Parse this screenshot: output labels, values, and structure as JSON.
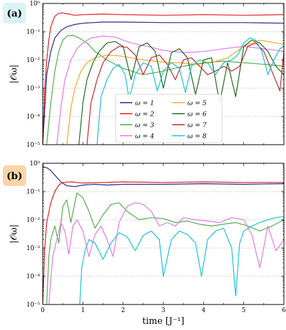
{
  "chart_data": [
    {
      "type": "line",
      "panel_label": "(a)",
      "ylabel": "|𝒪ω|",
      "xlabel": "",
      "yscale": "log",
      "ylim": [
        1e-05,
        1
      ],
      "xlim": [
        0,
        6
      ],
      "legend_position": "bottom-center",
      "yticks": [
        "10⁻⁵",
        "10⁻⁴",
        "10⁻³",
        "10⁻²",
        "10⁻¹",
        "10⁰"
      ],
      "series": [
        {
          "name": "ω = 1",
          "color": "#1f2a8a",
          "x": [
            0,
            0.1,
            0.2,
            0.3,
            0.45,
            0.6,
            0.8,
            1.0,
            1.5,
            2,
            3,
            4,
            5,
            6
          ],
          "y": [
            1e-05,
            0.003,
            0.02,
            0.06,
            0.11,
            0.15,
            0.18,
            0.2,
            0.22,
            0.22,
            0.21,
            0.21,
            0.21,
            0.2
          ]
        },
        {
          "name": "ω = 2",
          "color": "#e31a1c",
          "x": [
            0,
            0.05,
            0.1,
            0.15,
            0.2,
            0.3,
            0.4,
            0.5,
            0.65,
            0.8,
            1.0,
            1.5,
            2,
            3,
            4,
            5,
            6
          ],
          "y": [
            1e-05,
            0.001,
            0.01,
            0.05,
            0.15,
            0.35,
            0.45,
            0.46,
            0.42,
            0.38,
            0.4,
            0.42,
            0.4,
            0.38,
            0.4,
            0.38,
            0.4
          ]
        },
        {
          "name": "ω = 3",
          "color": "#4daf4a",
          "x": [
            0.1,
            0.2,
            0.3,
            0.4,
            0.5,
            0.6,
            0.75,
            0.9,
            1.1,
            1.3,
            1.6,
            2.0,
            2.5,
            3.0,
            3.5,
            4.0,
            4.5,
            5.0,
            5.5,
            6.0
          ],
          "y": [
            1e-05,
            0.0003,
            0.004,
            0.02,
            0.05,
            0.07,
            0.075,
            0.06,
            0.04,
            0.02,
            0.01,
            0.005,
            0.003,
            0.004,
            0.006,
            0.008,
            0.009,
            0.008,
            0.007,
            0.006
          ]
        },
        {
          "name": "ω = 4",
          "color": "#e377e3",
          "x": [
            0.35,
            0.45,
            0.55,
            0.7,
            0.85,
            1.0,
            1.2,
            1.5,
            1.8,
            2.0,
            2.2,
            2.6,
            3.0,
            3.5,
            4.0,
            4.5,
            5.0,
            5.5,
            6.0
          ],
          "y": [
            1e-05,
            0.0002,
            0.002,
            0.01,
            0.025,
            0.04,
            0.06,
            0.07,
            0.065,
            0.05,
            0.04,
            0.03,
            0.022,
            0.018,
            0.02,
            0.025,
            0.03,
            0.025,
            0.02
          ]
        },
        {
          "name": "ω = 5",
          "color": "#f5a623",
          "x": [
            0.6,
            0.7,
            0.8,
            0.95,
            1.1,
            1.3,
            1.6,
            1.9,
            2.2,
            2.5,
            2.8,
            3.1,
            3.4,
            3.8,
            4.2,
            4.6,
            5.0,
            5.4,
            5.8,
            6.0
          ],
          "y": [
            1e-05,
            0.0002,
            0.001,
            0.004,
            0.008,
            0.012,
            0.015,
            0.014,
            0.012,
            0.01,
            0.009,
            0.008,
            0.008,
            0.007,
            0.008,
            0.012,
            0.03,
            0.05,
            0.04,
            0.035
          ]
        },
        {
          "name": "ω = 6",
          "color": "#1a6b1a",
          "x": [
            0.9,
            1.0,
            1.1,
            1.25,
            1.4,
            1.6,
            1.8,
            2.0,
            2.2,
            2.4,
            2.6,
            2.8,
            3.0,
            3.2,
            3.4,
            3.6,
            3.8,
            4.0,
            4.2,
            4.4,
            4.6,
            4.8,
            5.0,
            5.2,
            5.4,
            5.6,
            5.8,
            6.0
          ],
          "y": [
            1e-05,
            0.0003,
            0.002,
            0.008,
            0.02,
            0.04,
            0.045,
            0.03,
            0.002,
            0.03,
            0.04,
            0.02,
            0.001,
            0.018,
            0.025,
            0.012,
            0.0006,
            0.01,
            0.012,
            0.0003,
            0.008,
            0.0005,
            0.03,
            0.05,
            0.04,
            0.02,
            0.006,
            0.003
          ]
        },
        {
          "name": "ω = 7",
          "color": "#c1272d",
          "x": [
            1.1,
            1.2,
            1.35,
            1.5,
            1.7,
            1.9,
            2.1,
            2.3,
            2.5,
            2.7,
            2.9,
            3.1,
            3.3,
            3.5,
            3.7,
            3.9,
            4.1,
            4.3,
            4.5,
            4.7,
            4.9,
            5.1,
            5.3,
            5.5,
            5.7,
            5.9,
            6.0
          ],
          "y": [
            1e-05,
            0.0003,
            0.002,
            0.008,
            0.02,
            0.03,
            0.028,
            0.015,
            0.003,
            0.012,
            0.015,
            0.007,
            0.002,
            0.01,
            0.012,
            0.006,
            0.003,
            0.004,
            0.006,
            0.004,
            0.006,
            0.03,
            0.04,
            0.02,
            0.004,
            0.0008,
            0.02
          ]
        },
        {
          "name": "ω = 8",
          "color": "#17c3d6",
          "x": [
            1.35,
            1.45,
            1.6,
            1.75,
            1.9,
            2.05,
            2.15,
            2.3,
            2.5,
            2.7,
            2.85,
            3.0,
            3.2,
            3.4,
            3.55,
            3.7,
            3.9,
            4.1,
            4.3,
            4.5,
            4.7,
            4.85,
            5.0,
            5.15,
            5.3,
            5.45,
            5.6,
            5.75,
            5.9,
            6.0
          ],
          "y": [
            1e-05,
            0.0005,
            0.002,
            0.005,
            0.007,
            0.003,
            0.0004,
            0.003,
            0.008,
            0.006,
            0.0008,
            0.004,
            0.008,
            0.005,
            0.0007,
            0.006,
            0.01,
            0.008,
            0.003,
            0.008,
            0.01,
            0.015,
            0.04,
            0.06,
            0.05,
            0.02,
            0.003,
            0.01,
            0.025,
            0.03
          ]
        }
      ]
    },
    {
      "type": "line",
      "panel_label": "(b)",
      "ylabel": "|𝒪ω|",
      "xlabel": "time [J⁻¹]",
      "yscale": "log",
      "ylim": [
        1e-05,
        1
      ],
      "xlim": [
        0,
        6
      ],
      "xticks": [
        "0",
        "1",
        "2",
        "3",
        "4",
        "5",
        "6"
      ],
      "yticks": [
        "10⁻⁵",
        "10⁻⁴",
        "10⁻³",
        "10⁻²",
        "10⁻¹",
        "10⁰"
      ],
      "series": [
        {
          "name": "ω = 1",
          "color": "#1f2a8a",
          "x": [
            0,
            0.1,
            0.2,
            0.3,
            0.45,
            0.6,
            0.8,
            1.0,
            1.3,
            1.6,
            2.0,
            3.0,
            4.0,
            5.0,
            6.0
          ],
          "y": [
            0.75,
            0.7,
            0.55,
            0.38,
            0.22,
            0.16,
            0.15,
            0.17,
            0.18,
            0.17,
            0.18,
            0.18,
            0.19,
            0.18,
            0.19
          ]
        },
        {
          "name": "ω = 2",
          "color": "#e31a1c",
          "x": [
            0,
            0.05,
            0.1,
            0.2,
            0.3,
            0.4,
            0.5,
            0.7,
            1.0,
            1.5,
            2.0,
            3.0,
            4.0,
            5.0,
            6.0
          ],
          "y": [
            1e-05,
            0.001,
            0.008,
            0.04,
            0.1,
            0.17,
            0.21,
            0.22,
            0.2,
            0.21,
            0.22,
            0.21,
            0.22,
            0.21,
            0.21
          ]
        },
        {
          "name": "ω = 3",
          "color": "#4daf4a",
          "x": [
            0.1,
            0.15,
            0.2,
            0.3,
            0.4,
            0.5,
            0.6,
            0.7,
            0.85,
            1.0,
            1.15,
            1.3,
            1.5,
            1.7,
            1.9,
            2.1,
            2.4,
            2.7,
            3.0,
            3.3,
            3.6,
            3.9,
            4.2,
            4.5,
            4.8,
            5.1,
            5.4,
            5.7,
            6.0
          ],
          "y": [
            1e-05,
            0.0005,
            0.002,
            0.006,
            0.0015,
            0.03,
            0.05,
            0.008,
            0.09,
            0.06,
            0.02,
            0.005,
            0.015,
            0.035,
            0.04,
            0.02,
            0.01,
            0.012,
            0.011,
            0.008,
            0.009,
            0.007,
            0.006,
            0.007,
            0.008,
            0.006,
            0.004,
            0.006,
            0.01
          ]
        },
        {
          "name": "ω = 4",
          "color": "#e377e3",
          "x": [
            0.15,
            0.25,
            0.35,
            0.45,
            0.55,
            0.65,
            0.75,
            0.85,
            1.0,
            1.15,
            1.3,
            1.45,
            1.6,
            1.75,
            1.9,
            2.1,
            2.3,
            2.5,
            2.7,
            2.9,
            3.1,
            3.3,
            3.5,
            3.8,
            4.1,
            4.4,
            4.7,
            5.0,
            5.2,
            5.4,
            5.6,
            5.8,
            6.0
          ],
          "y": [
            1e-05,
            0.0005,
            0.002,
            0.008,
            0.004,
            0.0006,
            0.006,
            0.01,
            0.004,
            0.0005,
            0.003,
            0.006,
            0.002,
            0.0005,
            0.008,
            0.03,
            0.04,
            0.035,
            0.02,
            0.006,
            0.008,
            0.006,
            0.012,
            0.01,
            0.009,
            0.008,
            0.012,
            0.01,
            0.003,
            0.0002,
            0.006,
            0.0008,
            0.002
          ]
        },
        {
          "name": "ω = 8",
          "color": "#17c3d6",
          "x": [
            0.92,
            0.97,
            1.05,
            1.15,
            1.3,
            1.5,
            1.7,
            1.9,
            2.1,
            2.3,
            2.5,
            2.7,
            2.9,
            3.0,
            3.2,
            3.4,
            3.6,
            3.8,
            3.95,
            4.1,
            4.3,
            4.5,
            4.7,
            4.8,
            4.9,
            5.0,
            5.2,
            5.4,
            5.6,
            5.8,
            6.0
          ],
          "y": [
            1e-05,
            0.0002,
            0.0008,
            0.002,
            0.0015,
            0.0004,
            0.0015,
            0.0035,
            0.0025,
            0.0008,
            0.0028,
            0.004,
            0.002,
            0.0001,
            0.002,
            0.004,
            0.003,
            0.0015,
            0.0001,
            0.002,
            0.004,
            0.005,
            0.001,
            2e-05,
            0.0015,
            0.004,
            0.006,
            0.008,
            0.01,
            0.012,
            0.013
          ]
        }
      ]
    }
  ]
}
